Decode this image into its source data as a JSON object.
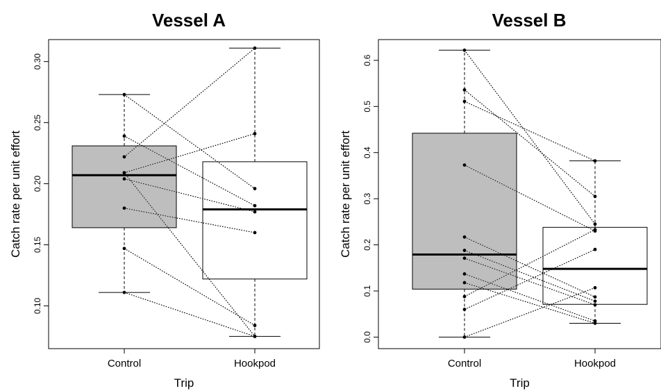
{
  "chart_data": [
    {
      "type": "box",
      "title": "Vessel A",
      "xlabel": "Trip",
      "ylabel": "Catch rate per unit effort",
      "categories": [
        "Control",
        "Hookpod"
      ],
      "yticks": [
        "0.10",
        "0.15",
        "0.20",
        "0.25",
        "0.30"
      ],
      "ylim": [
        0.065,
        0.318
      ],
      "box_colors": [
        "#bebebe",
        "#ffffff"
      ],
      "boxes": [
        {
          "name": "Control",
          "whisker_low": 0.111,
          "q1": 0.164,
          "median": 0.207,
          "q3": 0.231,
          "whisker_high": 0.273
        },
        {
          "name": "Hookpod",
          "whisker_low": 0.075,
          "q1": 0.122,
          "median": 0.179,
          "q3": 0.218,
          "whisker_high": 0.311
        }
      ],
      "pairs": [
        [
          0.273,
          0.196
        ],
        [
          0.239,
          0.182
        ],
        [
          0.222,
          0.311
        ],
        [
          0.209,
          0.241
        ],
        [
          0.204,
          0.177
        ],
        [
          0.18,
          0.16
        ],
        [
          0.147,
          0.084
        ],
        [
          0.111,
          0.075
        ],
        [
          0.209,
          0.075
        ]
      ]
    },
    {
      "type": "box",
      "title": "Vessel B",
      "xlabel": "Trip",
      "ylabel": "Catch rate per unit effort",
      "categories": [
        "Control",
        "Hookpod"
      ],
      "yticks": [
        "0.0",
        "0.1",
        "0.2",
        "0.3",
        "0.4",
        "0.5",
        "0.6"
      ],
      "ylim": [
        -0.025,
        0.645
      ],
      "box_colors": [
        "#bebebe",
        "#ffffff"
      ],
      "boxes": [
        {
          "name": "Control",
          "whisker_low": 0.0,
          "q1": 0.104,
          "median": 0.179,
          "q3": 0.442,
          "whisker_high": 0.622
        },
        {
          "name": "Hookpod",
          "whisker_low": 0.03,
          "q1": 0.071,
          "median": 0.148,
          "q3": 0.238,
          "whisker_high": 0.382
        }
      ],
      "pairs": [
        [
          0.622,
          0.245
        ],
        [
          0.536,
          0.305
        ],
        [
          0.511,
          0.382
        ],
        [
          0.373,
          0.23
        ],
        [
          0.217,
          0.087
        ],
        [
          0.188,
          0.078
        ],
        [
          0.171,
          0.07
        ],
        [
          0.137,
          0.035
        ],
        [
          0.118,
          0.03
        ],
        [
          0.088,
          0.233
        ],
        [
          0.06,
          0.19
        ],
        [
          0.0,
          0.107
        ]
      ]
    }
  ]
}
